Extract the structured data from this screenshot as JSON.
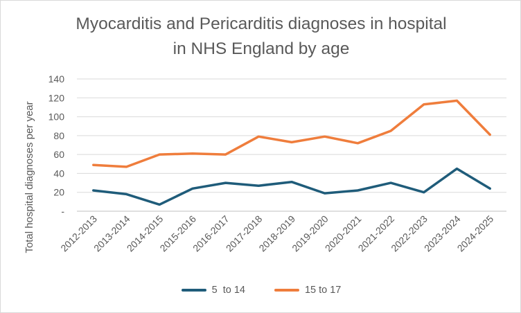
{
  "chart_data": {
    "type": "line",
    "title_lines": [
      "Myocarditis and Pericarditis diagnoses in hospital",
      "in NHS England by age"
    ],
    "ylabel": "Total hospital diagnoses per year",
    "xlabel": "",
    "categories": [
      "2012-2013",
      "2013-2014",
      "2014-2015",
      "2015-2016",
      "2016-2017",
      "2017-2018",
      "2018-2019",
      "2019-2020",
      "2020-2021",
      "2021-2022",
      "2022-2023",
      "2023-2024",
      "2024-2025"
    ],
    "ylim": [
      0,
      140
    ],
    "yticks": [
      0,
      20,
      40,
      60,
      80,
      100,
      120,
      140
    ],
    "ytick_labels": [
      "-",
      "20",
      "40",
      "60",
      "80",
      "100",
      "120",
      "140"
    ],
    "grid": true,
    "legend_position": "bottom",
    "series": [
      {
        "name": "5  to 14",
        "color": "#1f5c7a",
        "values": [
          22,
          18,
          7,
          24,
          30,
          27,
          31,
          19,
          22,
          30,
          20,
          45,
          24
        ]
      },
      {
        "name": "15 to 17",
        "color": "#ef7d3c",
        "values": [
          49,
          47,
          60,
          61,
          60,
          79,
          73,
          79,
          72,
          85,
          113,
          117,
          81
        ]
      }
    ]
  }
}
